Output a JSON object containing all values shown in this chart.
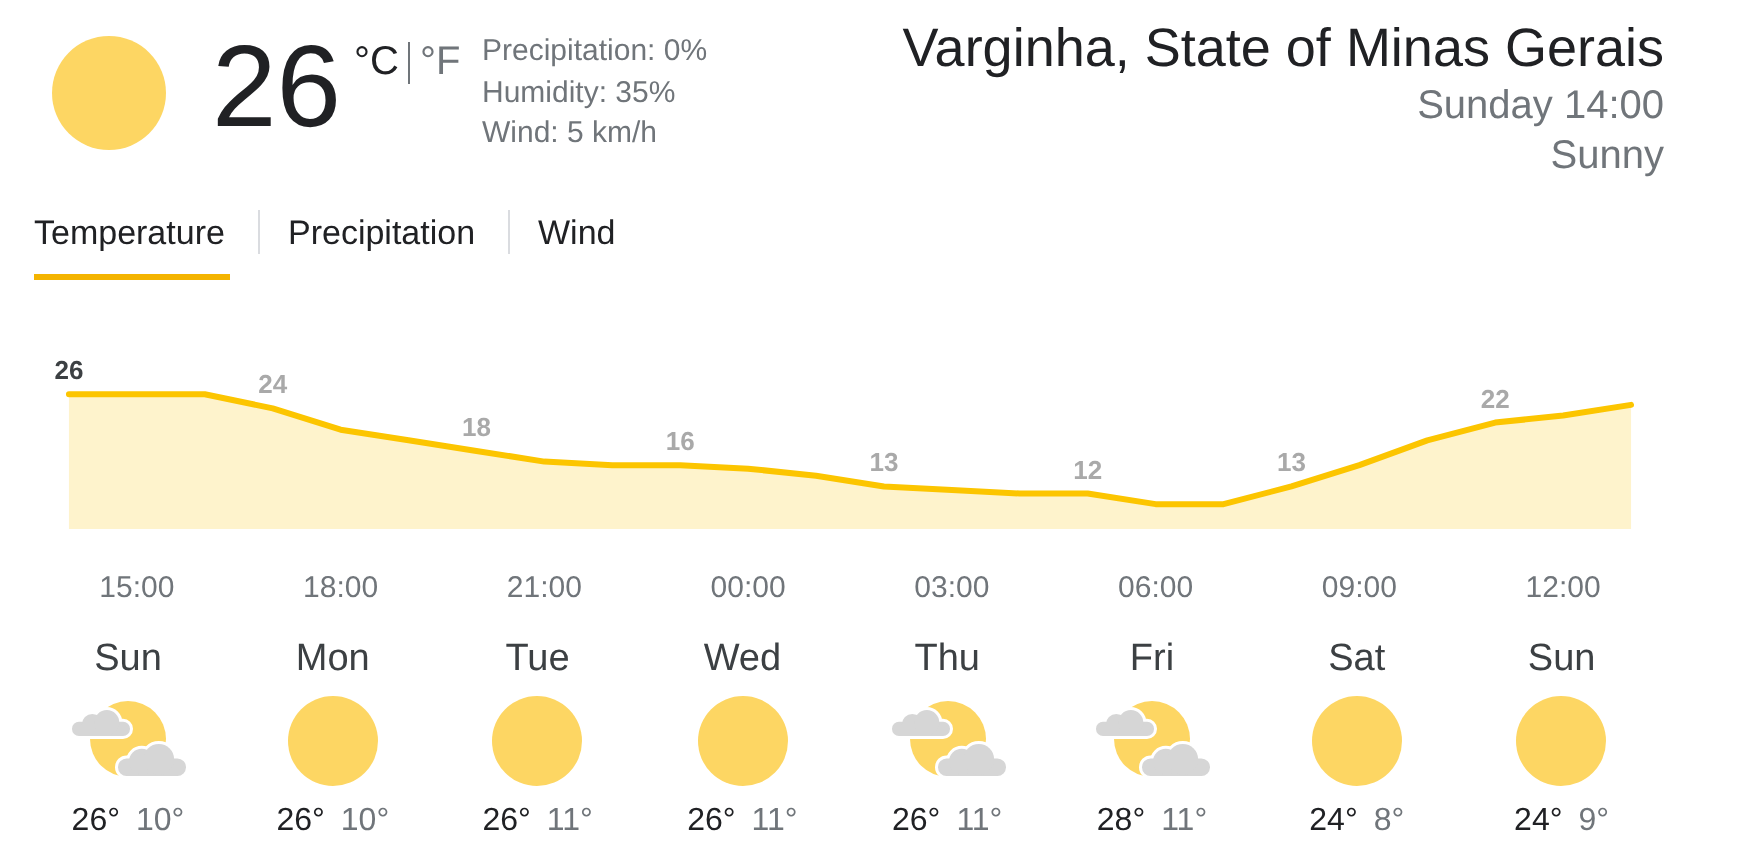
{
  "chart_data": [
    {
      "type": "other",
      "title": "Varginha, State of Minas Gerais",
      "subtitle": "Sunday 14:00",
      "annotations": [
        "26",
        "°C",
        "°F",
        "Precipitation: 0%",
        "Humidity: 35%",
        "Wind: 5 km/h",
        "Sunny",
        "Temperature",
        "Precipitation",
        "Wind"
      ]
    },
    {
      "type": "area",
      "categories": [
        null,
        "15:00",
        null,
        null,
        "18:00",
        null,
        null,
        "21:00",
        null,
        null,
        "00:00",
        null,
        null,
        "03:00",
        null,
        null,
        "06:00",
        null,
        null,
        "09:00",
        null,
        null,
        "12:00",
        null
      ],
      "series": [
        {
          "color": "#fcc500",
          "values": [
            26,
            26,
            26,
            24,
            21,
            19.5,
            18,
            16.5,
            16,
            16,
            15.5,
            14.5,
            13,
            12.5,
            12,
            12,
            10.5,
            10.5,
            13,
            16,
            19.5,
            22,
            23,
            24.5
          ],
          "value_labels": [
            "26",
            null,
            null,
            "24",
            null,
            null,
            "18",
            null,
            null,
            "16",
            null,
            null,
            "13",
            null,
            null,
            "12",
            null,
            null,
            "13",
            null,
            null,
            "22",
            null,
            null
          ]
        }
      ],
      "tick_labels": "x",
      "grid": false
    },
    {
      "type": "other",
      "categories": [
        "Sun",
        "Mon",
        "Tue",
        "Wed",
        "Thu",
        "Fri",
        "Sat",
        "Sun"
      ],
      "series": [
        {
          "color": "#202124",
          "values": [
            26,
            26,
            26,
            26,
            26,
            28,
            24,
            24
          ],
          "value_labels": [
            "26°",
            "26°",
            "26°",
            "26°",
            "26°",
            "28°",
            "24°",
            "24°"
          ]
        },
        {
          "color": "#70757a",
          "values": [
            10,
            10,
            11,
            11,
            11,
            11,
            8,
            9
          ],
          "value_labels": [
            "10°",
            "10°",
            "11°",
            "11°",
            "11°",
            "11°",
            "8°",
            "9°"
          ]
        }
      ]
    }
  ]
}
